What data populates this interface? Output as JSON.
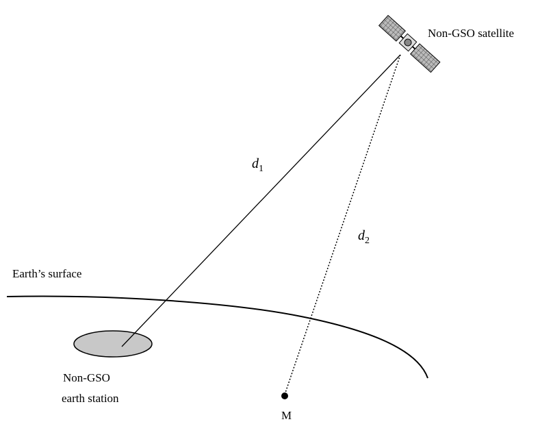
{
  "labels": {
    "satellite": "Non-GSO satellite",
    "d1": {
      "main": "d",
      "sub": "1"
    },
    "d2": {
      "main": "d",
      "sub": "2"
    },
    "surface": "Earth’s surface",
    "earth_station": [
      "Non-GSO",
      "earth station"
    ],
    "point": "M"
  }
}
